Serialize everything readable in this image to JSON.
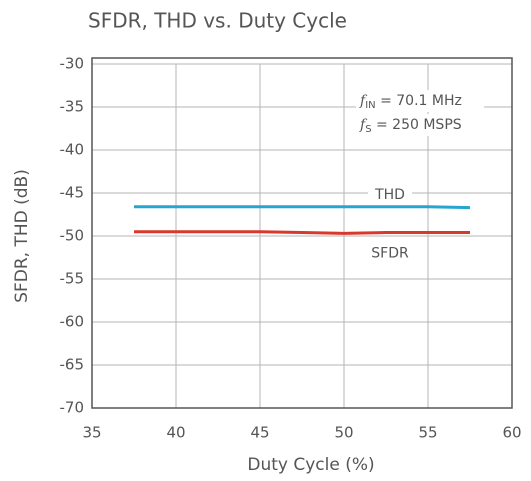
{
  "chart_data": {
    "type": "line",
    "title": "SFDR, THD vs. Duty Cycle",
    "xlabel": "Duty Cycle (%)",
    "ylabel": "SFDR, THD (dB)",
    "x": [
      37.5,
      40,
      42.5,
      45,
      47.5,
      50,
      52.5,
      55,
      57.5
    ],
    "series": [
      {
        "name": "THD",
        "color": "#26a6cf",
        "values": [
          -46.6,
          -46.6,
          -46.6,
          -46.6,
          -46.6,
          -46.6,
          -46.6,
          -46.6,
          -46.7
        ]
      },
      {
        "name": "SFDR",
        "color": "#d8392b",
        "values": [
          -49.5,
          -49.5,
          -49.5,
          -49.5,
          -49.6,
          -49.7,
          -49.6,
          -49.6,
          -49.6
        ]
      }
    ],
    "xlim": [
      35,
      60
    ],
    "xticks": [
      35,
      40,
      45,
      50,
      55,
      60
    ],
    "ylim": [
      -70,
      -30
    ],
    "yticks": [
      -70,
      -65,
      -60,
      -55,
      -50,
      -45,
      -40,
      -35,
      -30
    ],
    "grid": true,
    "annotations": [
      {
        "symbol": "f",
        "subscript": "IN",
        "text": " = 70.1 MHz"
      },
      {
        "symbol": "f",
        "subscript": "S",
        "text": " = 250 MSPS"
      }
    ]
  }
}
